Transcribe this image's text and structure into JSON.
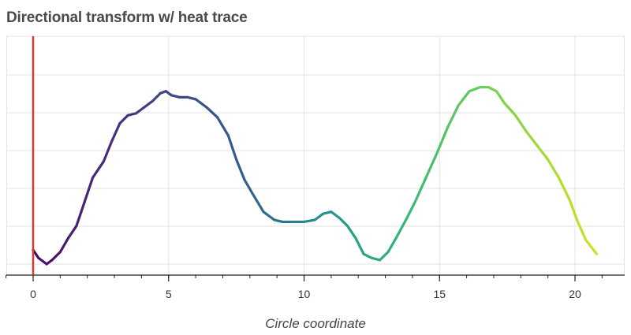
{
  "chart_data": {
    "type": "line",
    "title": "Directional transform w/ heat trace",
    "xlabel": "Circle coordinate",
    "ylabel": "",
    "xlim": [
      -1,
      22
    ],
    "ylim": [
      0,
      1
    ],
    "x_ticks": [
      0,
      5,
      10,
      15,
      20
    ],
    "x_tick_labels": [
      "0",
      "5",
      "10",
      "15",
      "20"
    ],
    "grid": true,
    "legend": "none",
    "marker_line_x": 0,
    "marker_line_color": "#e8302a",
    "colormap": "viridis",
    "series": [
      {
        "x": [
          0.0,
          0.2,
          0.5,
          0.7,
          1.0,
          1.3,
          1.6,
          1.9,
          2.2,
          2.4,
          2.6,
          2.9,
          3.2,
          3.5,
          3.8,
          4.1,
          4.4,
          4.7,
          4.9,
          5.1,
          5.4,
          5.7,
          6.0,
          6.4,
          6.8,
          7.2,
          7.5,
          7.8,
          8.1,
          8.5,
          8.9,
          9.2,
          9.6,
          10.0,
          10.4,
          10.7,
          11.0,
          11.3,
          11.6,
          11.9,
          12.2,
          12.5,
          12.8,
          13.1,
          13.4,
          13.8,
          14.1,
          14.5,
          14.9,
          15.3,
          15.7,
          16.1,
          16.5,
          16.8,
          17.1,
          17.4,
          17.8,
          18.2,
          18.6,
          19.0,
          19.4,
          19.8,
          20.1,
          20.4,
          20.8
        ],
        "y": [
          0.07,
          0.03,
          0.0,
          0.02,
          0.06,
          0.13,
          0.19,
          0.31,
          0.43,
          0.47,
          0.51,
          0.61,
          0.7,
          0.74,
          0.75,
          0.78,
          0.81,
          0.85,
          0.86,
          0.84,
          0.83,
          0.83,
          0.82,
          0.78,
          0.73,
          0.64,
          0.52,
          0.42,
          0.35,
          0.26,
          0.22,
          0.21,
          0.21,
          0.21,
          0.22,
          0.25,
          0.26,
          0.23,
          0.19,
          0.13,
          0.05,
          0.03,
          0.02,
          0.06,
          0.13,
          0.23,
          0.31,
          0.43,
          0.55,
          0.68,
          0.79,
          0.86,
          0.88,
          0.88,
          0.86,
          0.8,
          0.74,
          0.66,
          0.59,
          0.52,
          0.43,
          0.32,
          0.21,
          0.12,
          0.05
        ]
      }
    ]
  }
}
